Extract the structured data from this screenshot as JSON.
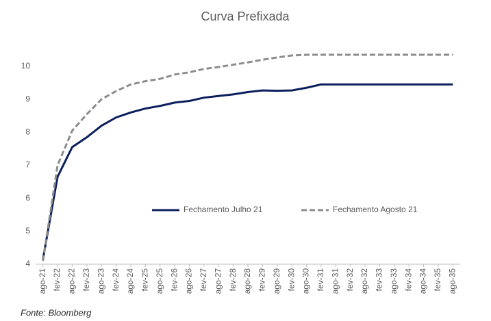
{
  "chart_data": {
    "type": "line",
    "title": "Curva Prefixada",
    "source": "Fonte: Bloomberg",
    "categories": [
      "ago-21",
      "fev-22",
      "ago-22",
      "fev-23",
      "ago-23",
      "fev-24",
      "ago-24",
      "fev-25",
      "ago-25",
      "fev-26",
      "ago-26",
      "fev-27",
      "ago-27",
      "fev-28",
      "ago-28",
      "fev-29",
      "ago-29",
      "fev-30",
      "ago-30",
      "fev-31",
      "ago-31",
      "fev-32",
      "ago-32",
      "fev-33",
      "ago-33",
      "fev-34",
      "ago-34",
      "fev-35",
      "ago-35"
    ],
    "series": [
      {
        "name": "Fechamento Julho 21",
        "color": "#0b1f5c",
        "dash": false,
        "values": [
          4.15,
          6.65,
          7.55,
          7.85,
          8.2,
          8.45,
          8.6,
          8.72,
          8.8,
          8.9,
          8.95,
          9.05,
          9.1,
          9.15,
          9.22,
          9.27,
          9.26,
          9.27,
          9.35,
          9.45,
          9.45,
          9.45,
          9.45,
          9.45,
          9.45,
          9.45,
          9.45,
          9.45,
          9.45
        ]
      },
      {
        "name": "Fechamento Agosto 21",
        "color": "#8c8c8c",
        "dash": true,
        "values": [
          4.1,
          7.0,
          8.05,
          8.55,
          9.0,
          9.25,
          9.45,
          9.55,
          9.62,
          9.75,
          9.82,
          9.92,
          9.98,
          10.05,
          10.12,
          10.2,
          10.27,
          10.33,
          10.35,
          10.35,
          10.35,
          10.35,
          10.35,
          10.35,
          10.35,
          10.35,
          10.35,
          10.35,
          10.35
        ]
      }
    ],
    "ylim": [
      4,
      10.6
    ],
    "yticks": [
      4,
      5,
      6,
      7,
      8,
      9,
      10
    ],
    "grid": false,
    "legend": "center"
  }
}
